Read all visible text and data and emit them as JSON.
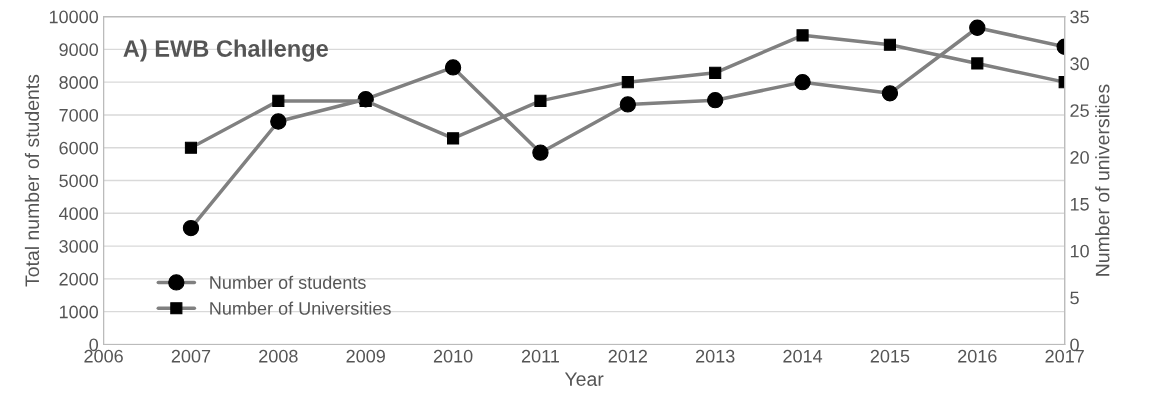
{
  "chart_data": {
    "type": "line",
    "title": "A) EWB Challenge",
    "xlabel": "Year",
    "ylabel": "Total number of students",
    "y2label": "Number of universities",
    "x": [
      2007,
      2008,
      2009,
      2010,
      2011,
      2012,
      2013,
      2014,
      2015,
      2016,
      2017
    ],
    "series": [
      {
        "name": "Number of students",
        "color": "#808080",
        "marker": "circle",
        "values": [
          3550,
          6800,
          7480,
          8450,
          5850,
          7320,
          7450,
          8000,
          7660,
          9660,
          9080
        ]
      },
      {
        "name": "Number of Universities",
        "color": "#808080",
        "marker": "square",
        "axis": "y2",
        "values": [
          21,
          26,
          26,
          22,
          26,
          28,
          29,
          33,
          32,
          30,
          28
        ]
      }
    ],
    "xlim": [
      2006,
      2017
    ],
    "xticks": [
      2006,
      2007,
      2008,
      2009,
      2010,
      2011,
      2012,
      2013,
      2014,
      2015,
      2016,
      2017
    ],
    "ylim": [
      0,
      10000
    ],
    "yticks": [
      0,
      1000,
      2000,
      3000,
      4000,
      5000,
      6000,
      7000,
      8000,
      9000,
      10000
    ],
    "y2lim": [
      0,
      35
    ],
    "y2ticks": [
      0,
      5,
      10,
      15,
      20,
      25,
      30,
      35
    ],
    "grid": "y",
    "legend": "bottom left",
    "line_style": "solid"
  }
}
